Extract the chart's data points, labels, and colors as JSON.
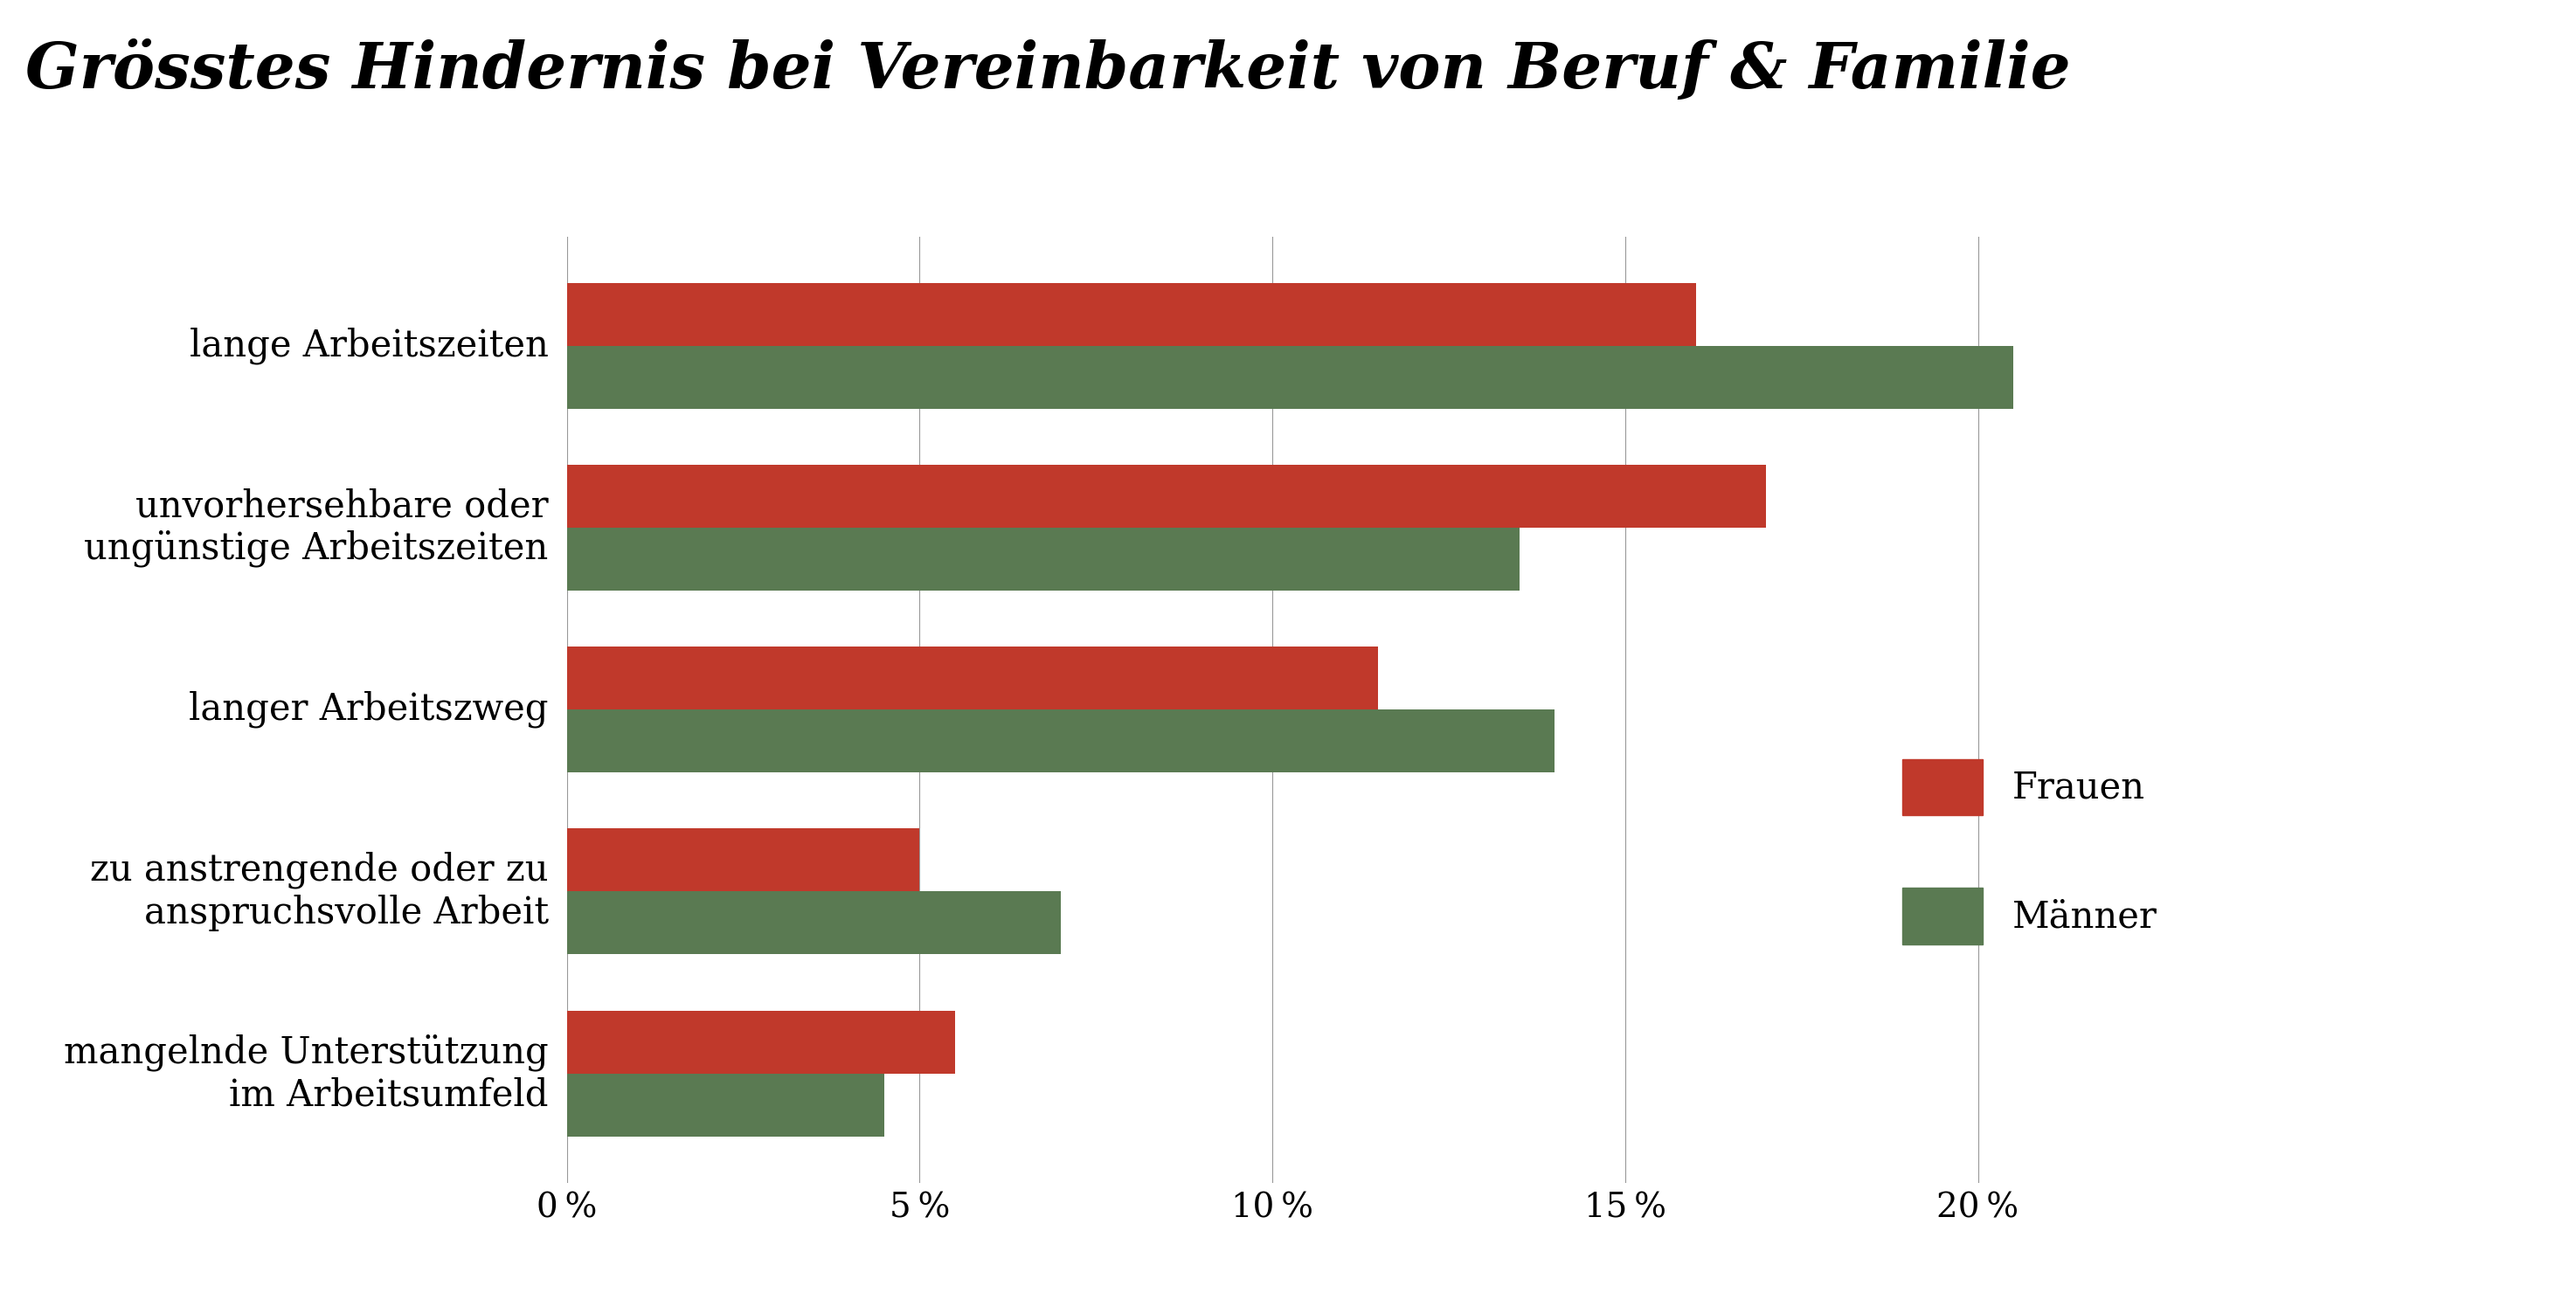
{
  "title": "Grösstes Hindernis bei Vereinbarkeit von Beruf & Familie",
  "categories": [
    "lange Arbeitszeiten",
    "unvorhersehbare oder\nungünstige Arbeitszeiten",
    "langer Arbeitszweg",
    "zu anstrengende oder zu\nanspruchsvolle Arbeit",
    "mangelnde Unterstützung\nim Arbeitsumfeld"
  ],
  "frauen": [
    16.0,
    17.0,
    11.5,
    5.0,
    5.5
  ],
  "maenner": [
    20.5,
    13.5,
    14.0,
    7.0,
    4.5
  ],
  "frauen_color": "#c0392b",
  "maenner_color": "#5a7a52",
  "background_color": "#ffffff",
  "xlim": [
    0,
    23
  ],
  "xticks": [
    0,
    5,
    10,
    15,
    20
  ],
  "xticklabels": [
    "0 %",
    "5 %",
    "10 %",
    "15 %",
    "20 %"
  ],
  "title_fontsize": 52,
  "label_fontsize": 30,
  "tick_fontsize": 28,
  "legend_fontsize": 30,
  "bar_height": 0.38,
  "bar_spacing": 1.1
}
